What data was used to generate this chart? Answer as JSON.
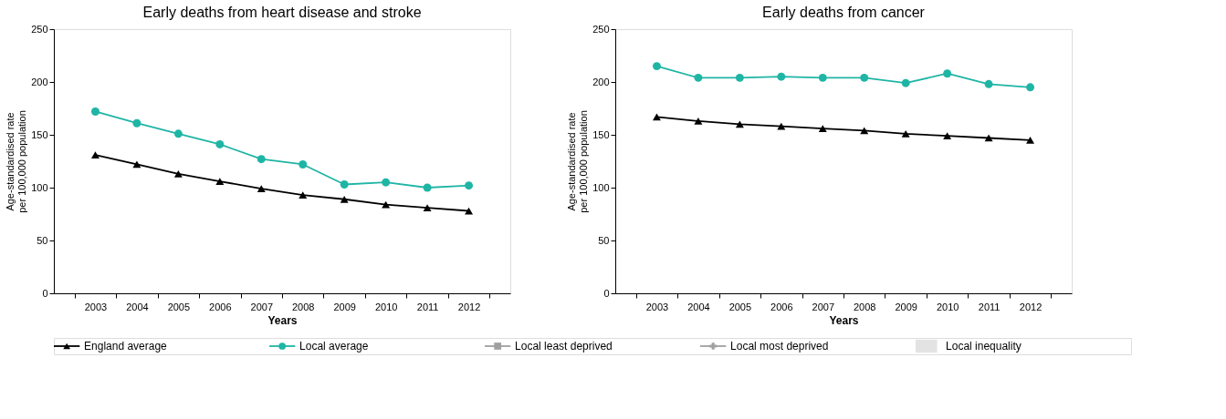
{
  "chart_data": [
    {
      "type": "line",
      "title": "Early deaths from heart disease and stroke",
      "xlabel": "Years",
      "ylabel": "Age-standardised rate\nper 100,000 population",
      "categories": [
        "2003",
        "2004",
        "2005",
        "2006",
        "2007",
        "2008",
        "2009",
        "2010",
        "2011",
        "2012"
      ],
      "ylim": [
        0,
        250
      ],
      "yticks": [
        0,
        50,
        100,
        150,
        200,
        250
      ],
      "grid": false,
      "legend": "bottom",
      "line_style": "solid",
      "series": [
        {
          "name": "England average",
          "color": "#000000",
          "marker": "triangle",
          "values": [
            131,
            122,
            113,
            106,
            99,
            93,
            89,
            84,
            81,
            78
          ]
        },
        {
          "name": "Local average",
          "color": "#1fb5a5",
          "marker": "circle",
          "values": [
            172,
            161,
            151,
            141,
            127,
            122,
            103,
            105,
            100,
            102
          ]
        },
        {
          "name": "Local least deprived",
          "color": "#a0a0a0",
          "marker": "square",
          "values": [
            null,
            null,
            null,
            null,
            null,
            null,
            null,
            null,
            null,
            null
          ]
        },
        {
          "name": "Local most deprived",
          "color": "#a0a0a0",
          "marker": "cross",
          "values": [
            null,
            null,
            null,
            null,
            null,
            null,
            null,
            null,
            null,
            null
          ]
        },
        {
          "name": "Local inequality",
          "type": "area",
          "color": "#e3e3e3",
          "values": [
            null,
            null,
            null,
            null,
            null,
            null,
            null,
            null,
            null,
            null
          ]
        }
      ]
    },
    {
      "type": "line",
      "title": "Early deaths from cancer",
      "xlabel": "Years",
      "ylabel": "Age-standardised rate\nper 100,000 population",
      "categories": [
        "2003",
        "2004",
        "2005",
        "2006",
        "2007",
        "2008",
        "2009",
        "2010",
        "2011",
        "2012"
      ],
      "ylim": [
        0,
        250
      ],
      "yticks": [
        0,
        50,
        100,
        150,
        200,
        250
      ],
      "grid": false,
      "line_style": "solid",
      "series": [
        {
          "color": "#000000",
          "marker": "triangle",
          "values": [
            167,
            163,
            160,
            158,
            156,
            154,
            151,
            149,
            147,
            145
          ]
        },
        {
          "color": "#1fb5a5",
          "marker": "circle",
          "values": [
            215,
            204,
            204,
            205,
            204,
            204,
            199,
            208,
            198,
            195
          ]
        }
      ]
    }
  ]
}
